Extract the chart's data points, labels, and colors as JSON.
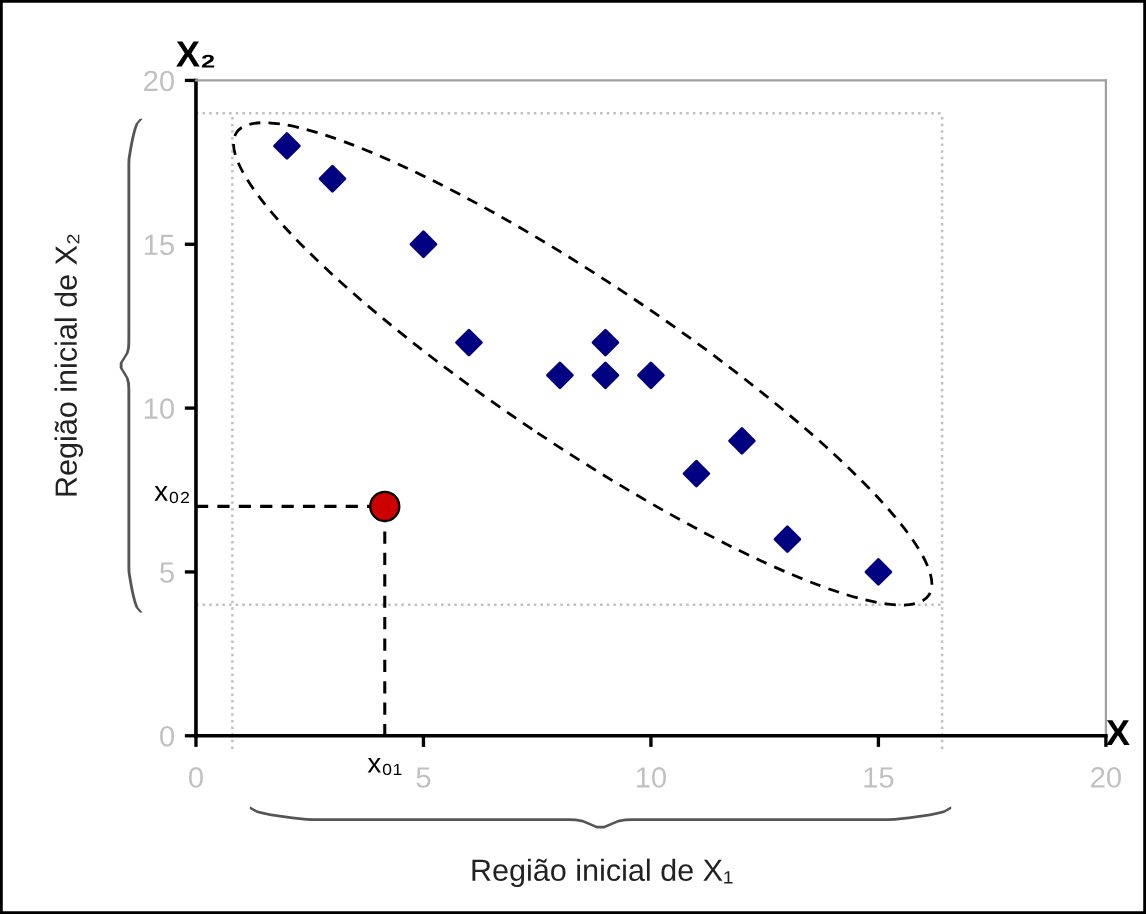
{
  "chart_data": {
    "type": "scatter",
    "xlabel": "X",
    "ylabel": "X₂",
    "xlim": [
      0,
      20
    ],
    "ylim": [
      0,
      20
    ],
    "xticks": [
      0,
      5,
      10,
      15,
      20
    ],
    "yticks": [
      0,
      5,
      10,
      15,
      20
    ],
    "grid": false,
    "legend": false,
    "series": [
      {
        "marker": "diamond",
        "color": "#000080",
        "x": [
          2,
          3,
          5,
          6,
          8,
          9,
          9,
          10,
          11,
          12,
          13,
          15
        ],
        "values": [
          18,
          17,
          15,
          12,
          11,
          12,
          11,
          11,
          8,
          9,
          6,
          5
        ]
      },
      {
        "type": "line",
        "line_style": "dashed",
        "marker": "none",
        "color": "#000000",
        "x": [
          0,
          4.15,
          4.15
        ],
        "values": [
          7,
          7,
          0
        ]
      },
      {
        "marker": "circle",
        "color": "#cc0000",
        "x": [
          4.15
        ],
        "values": [
          7
        ]
      }
    ],
    "ref_lines": [
      {
        "axis": "x",
        "value": 0.8,
        "label": null,
        "color": "#c0c0c0",
        "line_style": "dotted"
      },
      {
        "axis": "x",
        "value": 16.4,
        "label": null,
        "color": "#c0c0c0",
        "line_style": "dotted"
      },
      {
        "axis": "y",
        "value": 4,
        "label": null,
        "color": "#c0c0c0",
        "line_style": "dotted"
      },
      {
        "axis": "y",
        "value": 19,
        "label": null,
        "color": "#c0c0c0",
        "line_style": "dotted"
      }
    ],
    "annotations": [
      {
        "text": "x₀₁",
        "x": 4.15,
        "y": 0
      },
      {
        "text": "x₀₂",
        "x": 0,
        "y": 7
      },
      "Região inicial de X₂",
      "Região inicial de X₁"
    ]
  }
}
